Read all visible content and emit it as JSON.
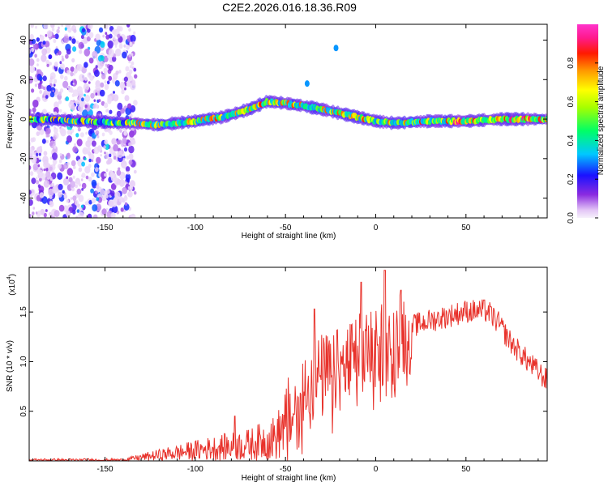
{
  "figure": {
    "title": "C2E2.2026.016.18.36.R09"
  },
  "chart_data": [
    {
      "type": "heatmap",
      "name": "spectrogram",
      "xlabel": "Height of straight line (km)",
      "ylabel": "Frequency (Hz)",
      "xlim": [
        -192,
        95
      ],
      "ylim": [
        -50,
        48
      ],
      "xticks": [
        -150,
        -100,
        -50,
        0,
        50
      ],
      "yticks": [
        -40,
        -20,
        0,
        20,
        40
      ],
      "colorbar": {
        "label": "Normalized spectral amplitude",
        "range": [
          0,
          1
        ],
        "ticks": [
          "0.0",
          "0.2",
          "0.4",
          "0.6",
          "0.8"
        ],
        "tick_values": [
          0.0,
          0.2,
          0.4,
          0.6,
          0.8
        ]
      },
      "ridge": [
        {
          "x": -192,
          "f": 0
        },
        {
          "x": -135,
          "f": -2
        },
        {
          "x": -120,
          "f": -3
        },
        {
          "x": -100,
          "f": -1
        },
        {
          "x": -85,
          "f": 1
        },
        {
          "x": -70,
          "f": 5
        },
        {
          "x": -60,
          "f": 9
        },
        {
          "x": -50,
          "f": 8
        },
        {
          "x": -42,
          "f": 7
        },
        {
          "x": -30,
          "f": 5
        },
        {
          "x": -20,
          "f": 3
        },
        {
          "x": -10,
          "f": 1
        },
        {
          "x": 0,
          "f": -1
        },
        {
          "x": 10,
          "f": -2
        },
        {
          "x": 30,
          "f": -1
        },
        {
          "x": 50,
          "f": -1
        },
        {
          "x": 70,
          "f": 0
        },
        {
          "x": 95,
          "f": 0
        }
      ],
      "annotations": [
        {
          "x": -22,
          "f": 36,
          "value": 0.3
        },
        {
          "x": -38,
          "f": 18,
          "value": 0.3
        }
      ]
    },
    {
      "type": "line",
      "name": "snr",
      "xlabel": "Height of straight line (km)",
      "ylabel": "SNR (10 * v/v)",
      "scale_label": "(x10",
      "scale_exponent": "4",
      "xlim": [
        -192,
        95
      ],
      "ylim": [
        0,
        1.95
      ],
      "xticks": [
        -150,
        -100,
        -50,
        0,
        50
      ],
      "yticks": [
        0.5,
        1.0,
        1.5
      ],
      "ytick_labels": [
        "0.5",
        "1.0",
        "1.5"
      ],
      "color": "#e8322b",
      "envelope": [
        {
          "x": -192,
          "y": 0.01
        },
        {
          "x": -140,
          "y": 0.01
        },
        {
          "x": -130,
          "y": 0.04
        },
        {
          "x": -110,
          "y": 0.09
        },
        {
          "x": -90,
          "y": 0.14
        },
        {
          "x": -70,
          "y": 0.18
        },
        {
          "x": -55,
          "y": 0.26
        },
        {
          "x": -45,
          "y": 0.55
        },
        {
          "x": -35,
          "y": 0.85
        },
        {
          "x": -20,
          "y": 0.95
        },
        {
          "x": -10,
          "y": 1.08
        },
        {
          "x": 0,
          "y": 1.2
        },
        {
          "x": 10,
          "y": 1.3
        },
        {
          "x": 25,
          "y": 1.4
        },
        {
          "x": 40,
          "y": 1.47
        },
        {
          "x": 50,
          "y": 1.52
        },
        {
          "x": 62,
          "y": 1.52
        },
        {
          "x": 68,
          "y": 1.4
        },
        {
          "x": 75,
          "y": 1.2
        },
        {
          "x": 85,
          "y": 1.0
        },
        {
          "x": 95,
          "y": 0.82
        }
      ],
      "peaks": [
        {
          "x": -78,
          "y": 0.45
        },
        {
          "x": -34,
          "y": 1.53
        },
        {
          "x": -8,
          "y": 1.8
        },
        {
          "x": 5,
          "y": 1.92
        },
        {
          "x": 14,
          "y": 1.72
        },
        {
          "x": 60,
          "y": 1.62
        }
      ]
    }
  ]
}
